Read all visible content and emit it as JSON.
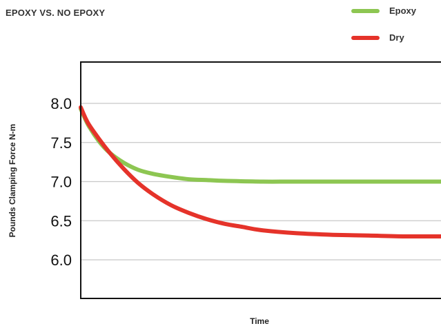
{
  "chart_data": {
    "type": "line",
    "title": "EPOXY VS. NO EPOXY",
    "xlabel": "Time",
    "ylabel": "Pounds Clamping Force N-m",
    "ylim": [
      5.6,
      8.5
    ],
    "xlim": [
      0,
      1
    ],
    "yticks": [
      "8.0",
      "7.5",
      "7.0",
      "6.5",
      "6.0"
    ],
    "ytick_values": [
      8.0,
      7.5,
      7.0,
      6.5,
      6.0
    ],
    "grid": true,
    "legend_position": "top-right",
    "series": [
      {
        "name": "Epoxy",
        "color": "#8dc652",
        "x": [
          0,
          0.02,
          0.05,
          0.08,
          0.12,
          0.16,
          0.2,
          0.25,
          0.3,
          0.35,
          0.4,
          0.5,
          0.6,
          0.8,
          1.0
        ],
        "y": [
          7.93,
          7.73,
          7.52,
          7.37,
          7.24,
          7.15,
          7.1,
          7.06,
          7.03,
          7.02,
          7.01,
          7.0,
          7.0,
          7.0,
          7.0
        ]
      },
      {
        "name": "Dry",
        "color": "#e5332a",
        "x": [
          0,
          0.02,
          0.05,
          0.08,
          0.12,
          0.16,
          0.2,
          0.25,
          0.3,
          0.35,
          0.4,
          0.45,
          0.5,
          0.6,
          0.7,
          0.8,
          0.9,
          1.0
        ],
        "y": [
          7.95,
          7.75,
          7.55,
          7.37,
          7.16,
          6.98,
          6.84,
          6.7,
          6.6,
          6.52,
          6.46,
          6.42,
          6.38,
          6.34,
          6.32,
          6.31,
          6.3,
          6.3
        ]
      }
    ]
  }
}
